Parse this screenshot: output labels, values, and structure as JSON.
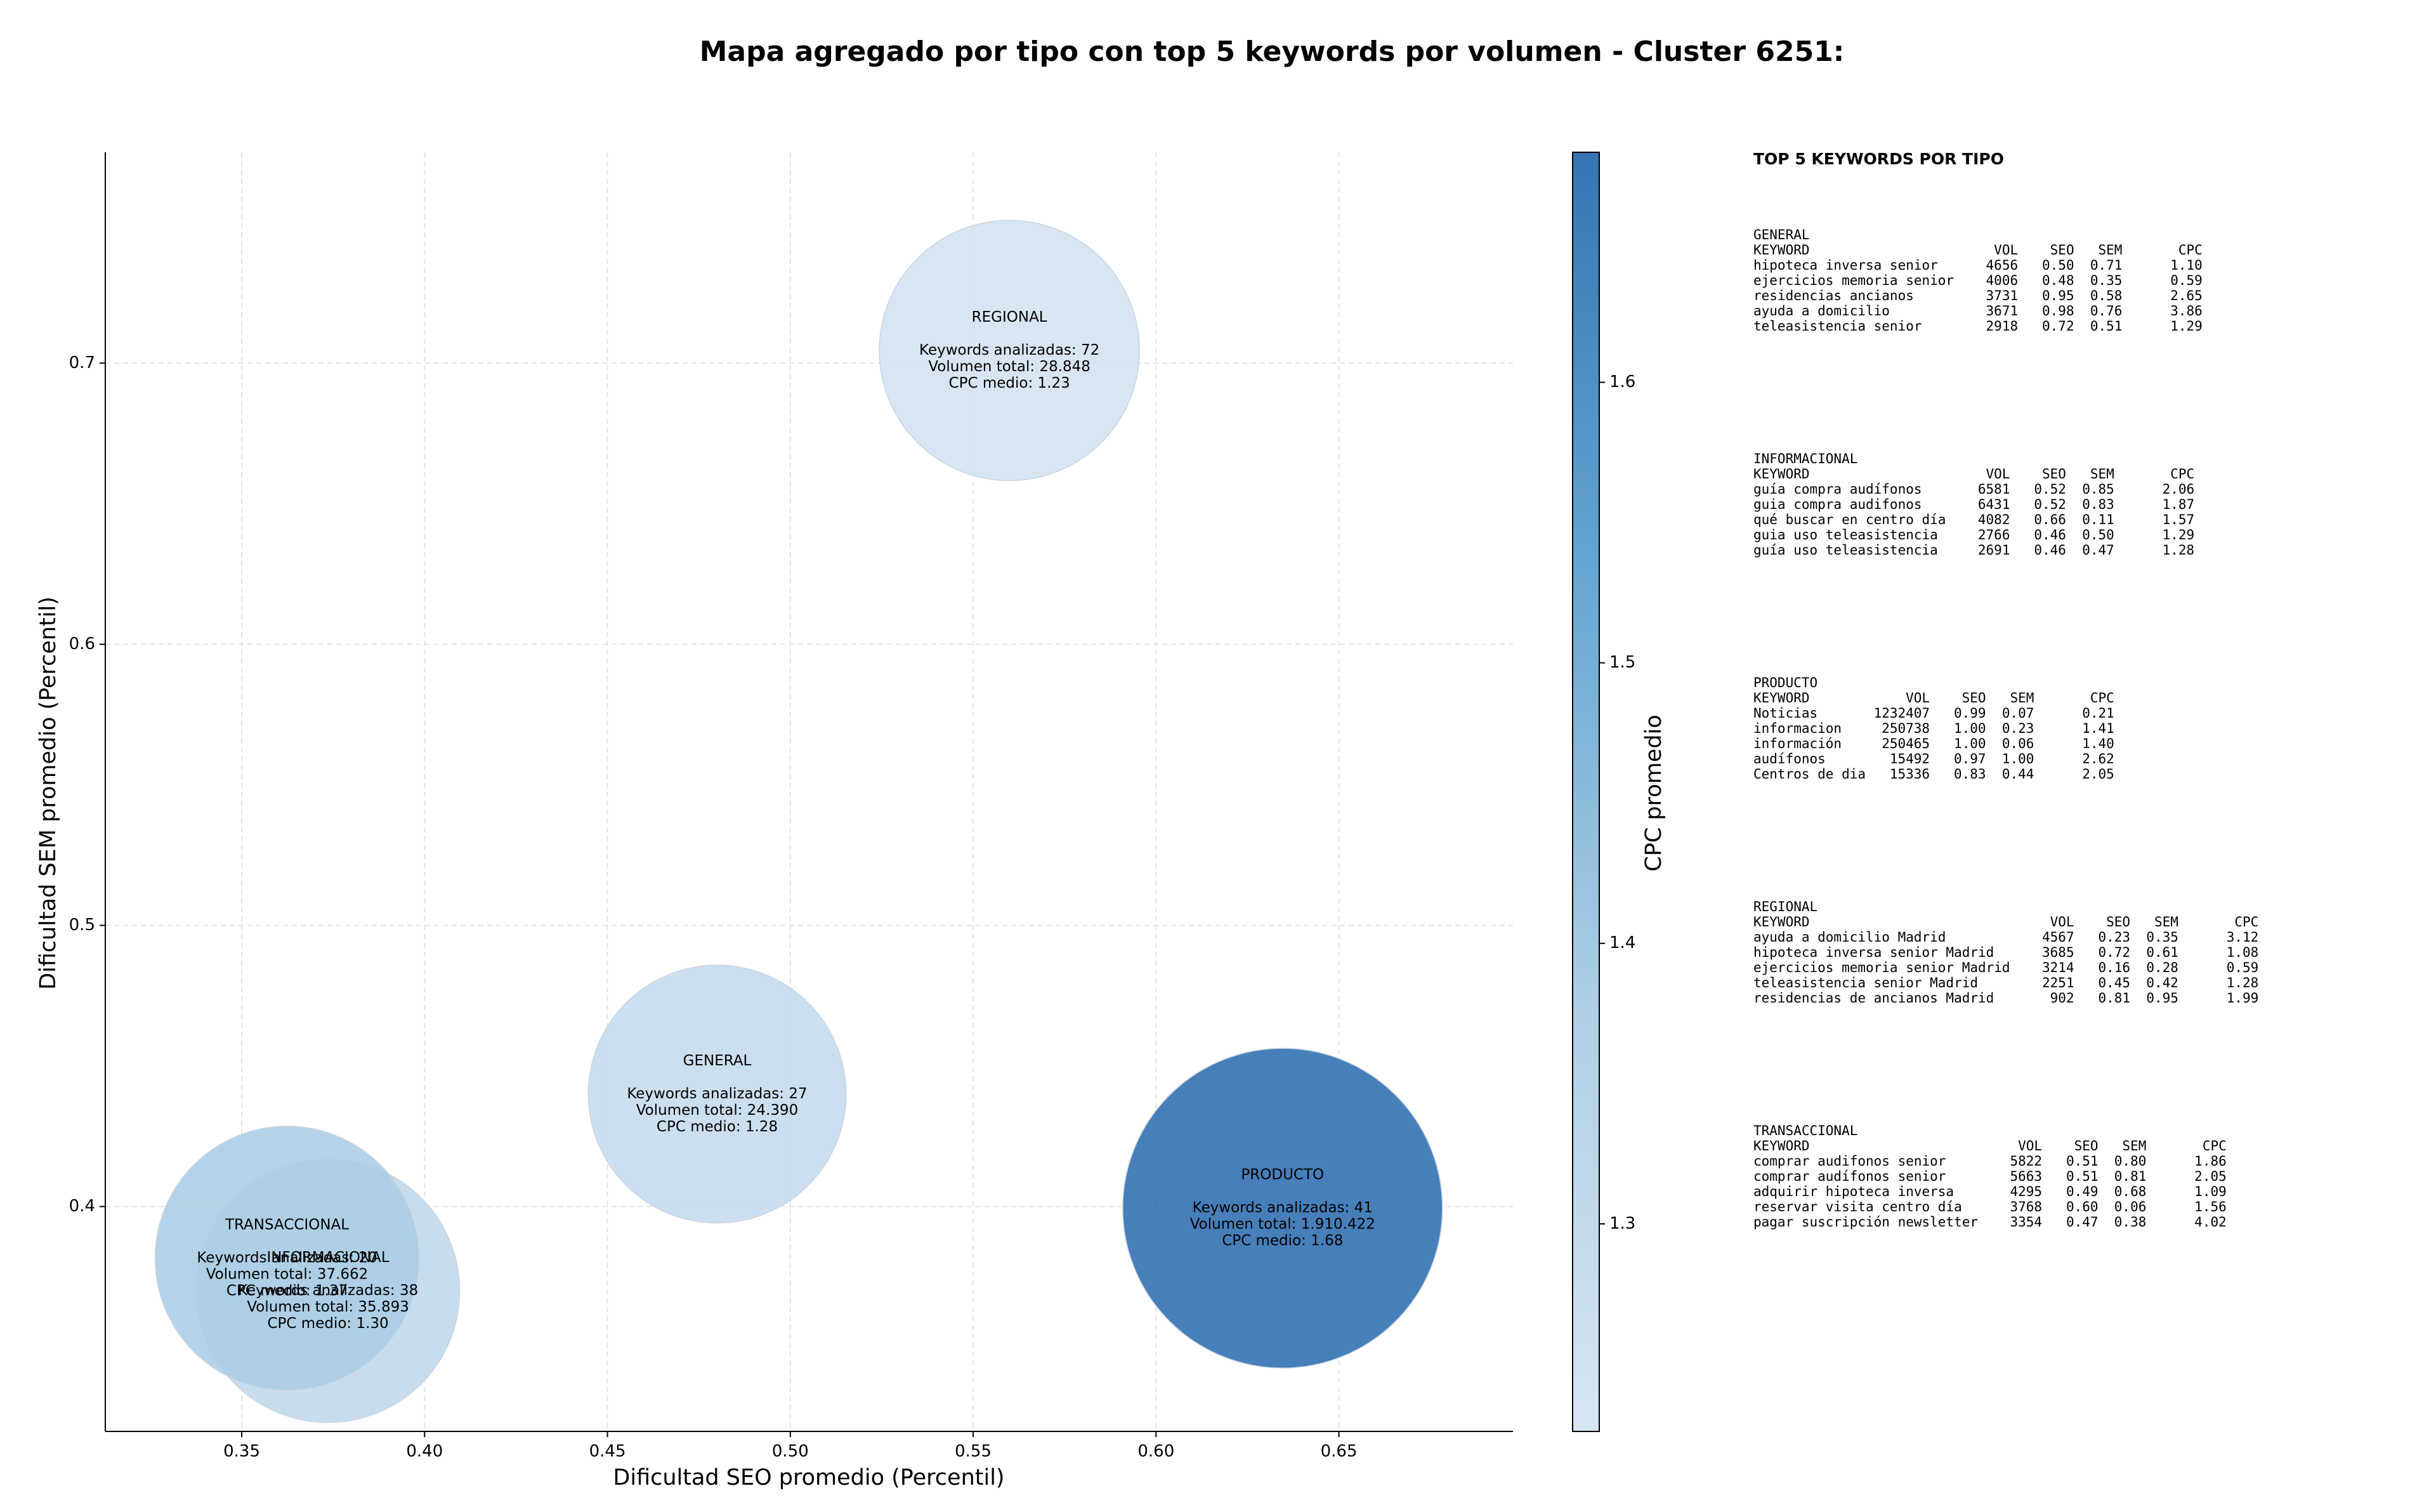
{
  "chart_data": {
    "type": "scatter",
    "title": "Mapa agregado por tipo con top 5 keywords por volumen - Cluster 6251:",
    "x_label": "Dificultad SEO promedio (Percentil)",
    "y_label": "Dificultad SEM promedio (Percentil)",
    "colorbar_label": "CPC promedio",
    "categories": [
      "GENERAL",
      "INFORMACIONAL",
      "PRODUCTO",
      "REGIONAL",
      "TRANSACCIONAL"
    ],
    "x": [
      0.48,
      0.3736,
      0.6346,
      0.5599,
      0.3624
    ],
    "y": [
      0.44,
      0.37,
      0.3994,
      0.7045,
      0.3816
    ],
    "sizes": [
      24390,
      35893,
      1910422,
      28848,
      37662
    ],
    "cpc": [
      1.28,
      1.3,
      1.68,
      1.23,
      1.37
    ],
    "annotations": [
      [
        "Keywords analizadas: 27",
        "Volumen total: 24.390",
        "CPC medio: 1.28"
      ],
      [
        "Keywords analizadas: 38",
        "Volumen total: 35.893",
        "CPC medio: 1.30"
      ],
      [
        "Keywords analizadas: 41",
        "Volumen total: 1.910.422",
        "CPC medio: 1.68"
      ],
      [
        "Keywords analizadas: 72",
        "Volumen total: 28.848",
        "CPC medio: 1.23"
      ],
      [
        "Keywords analizadas: 20",
        "Volumen total: 37.662",
        "CPC medio: 1.37"
      ]
    ],
    "xlim": [
      0.3127,
      0.6976
    ],
    "ylim": [
      0.32,
      0.775
    ],
    "xticks": [
      0.35,
      {
        "value": 0.4,
        "label": "0.40"
      },
      0.45,
      {
        "value": 0.5,
        "label": "0.50"
      },
      0.55,
      {
        "value": 0.6,
        "label": "0.60"
      },
      0.65
    ],
    "yticks": [
      0.4,
      0.5,
      0.6,
      0.7
    ],
    "clim": [
      1.226,
      1.682
    ],
    "cticks": [
      1.3,
      1.4,
      1.5,
      1.6
    ],
    "colormap": [
      "#d4e4f3",
      "#a9cce4",
      "#5fa2d0",
      "#2b6cb0"
    ],
    "grid": true
  },
  "keyword_panel": {
    "title": "TOP 5 KEYWORDS POR TIPO",
    "columns": [
      "KEYWORD",
      "VOL",
      "SEO",
      "SEM",
      "CPC"
    ],
    "groups": [
      {
        "name": "GENERAL",
        "rows": [
          [
            "hipoteca inversa senior",
            "4656",
            "0.50",
            "0.71",
            "1.10"
          ],
          [
            "ejercicios memoria senior",
            "4006",
            "0.48",
            "0.35",
            "0.59"
          ],
          [
            "residencias ancianos",
            "3731",
            "0.95",
            "0.58",
            "2.65"
          ],
          [
            "ayuda a domicilio",
            "3671",
            "0.98",
            "0.76",
            "3.86"
          ],
          [
            "teleasistencia senior",
            "2918",
            "0.72",
            "0.51",
            "1.29"
          ]
        ]
      },
      {
        "name": "INFORMACIONAL",
        "rows": [
          [
            "guía compra audífonos",
            "6581",
            "0.52",
            "0.85",
            "2.06"
          ],
          [
            "guia compra audifonos",
            "6431",
            "0.52",
            "0.83",
            "1.87"
          ],
          [
            "qué buscar en centro día",
            "4082",
            "0.66",
            "0.11",
            "1.57"
          ],
          [
            "guia uso teleasistencia",
            "2766",
            "0.46",
            "0.50",
            "1.29"
          ],
          [
            "guía uso teleasistencia",
            "2691",
            "0.46",
            "0.47",
            "1.28"
          ]
        ]
      },
      {
        "name": "PRODUCTO",
        "rows": [
          [
            "Noticias",
            "1232407",
            "0.99",
            "0.07",
            "0.21"
          ],
          [
            "informacion",
            "250738",
            "1.00",
            "0.23",
            "1.41"
          ],
          [
            "información",
            "250465",
            "1.00",
            "0.06",
            "1.40"
          ],
          [
            "audífonos",
            "15492",
            "0.97",
            "1.00",
            "2.62"
          ],
          [
            "Centros de dia",
            "15336",
            "0.83",
            "0.44",
            "2.05"
          ]
        ]
      },
      {
        "name": "REGIONAL",
        "rows": [
          [
            "ayuda a domicilio Madrid",
            "4567",
            "0.23",
            "0.35",
            "3.12"
          ],
          [
            "hipoteca inversa senior Madrid",
            "3685",
            "0.72",
            "0.61",
            "1.08"
          ],
          [
            "ejercicios memoria senior Madrid",
            "3214",
            "0.16",
            "0.28",
            "0.59"
          ],
          [
            "teleasistencia senior Madrid",
            "2251",
            "0.45",
            "0.42",
            "1.28"
          ],
          [
            "residencias de ancianos Madrid",
            "902",
            "0.81",
            "0.95",
            "1.99"
          ]
        ]
      },
      {
        "name": "TRANSACCIONAL",
        "rows": [
          [
            "comprar audifonos senior",
            "5822",
            "0.51",
            "0.80",
            "1.86"
          ],
          [
            "comprar audífonos senior",
            "5663",
            "0.51",
            "0.81",
            "2.05"
          ],
          [
            "adquirir hipoteca inversa",
            "4295",
            "0.49",
            "0.68",
            "1.09"
          ],
          [
            "reservar visita centro día",
            "3768",
            "0.60",
            "0.06",
            "1.56"
          ],
          [
            "pagar suscripción newsletter",
            "3354",
            "0.47",
            "0.38",
            "4.02"
          ]
        ]
      }
    ]
  }
}
